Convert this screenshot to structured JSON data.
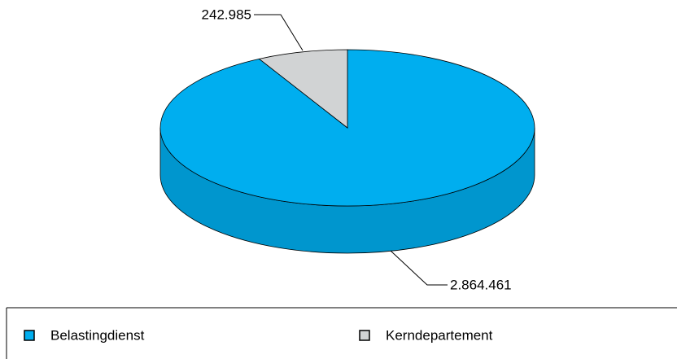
{
  "chart_data": {
    "type": "pie",
    "categories": [
      "Belastingdienst",
      "Kerndepartement"
    ],
    "values": [
      2864461,
      242985
    ],
    "value_labels": [
      "2.864.461",
      "242.985"
    ],
    "colors": [
      "#00aeef",
      "#d1d3d4"
    ],
    "legend": "bottom"
  }
}
